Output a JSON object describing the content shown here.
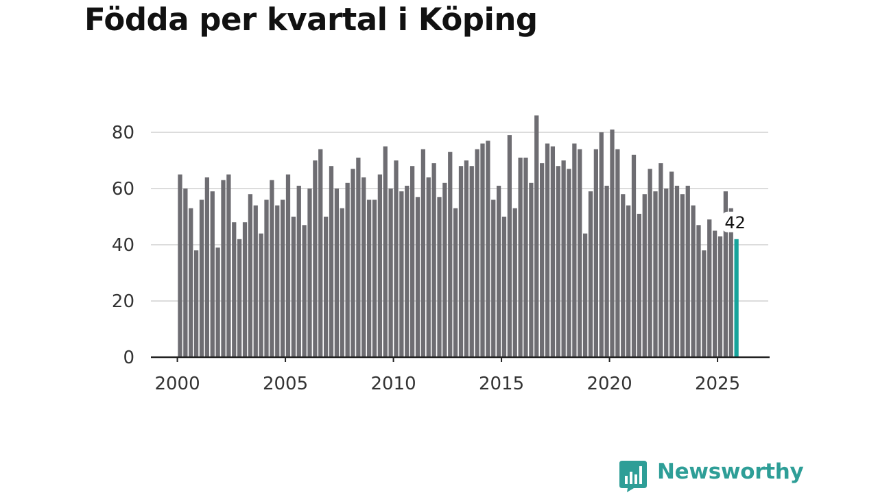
{
  "title": "Födda per kvartal i Köping",
  "colors": {
    "bar": "#6e6d72",
    "highlight": "#17a39b",
    "grid": "#dcdcdc",
    "axis": "#222222",
    "text": "#333333",
    "brand": "#2e9e97"
  },
  "chart_data": {
    "type": "bar",
    "title": "Födda per kvartal i Köping",
    "xlabel": "",
    "ylabel": "",
    "start_year": 2000,
    "periods_per_year": 4,
    "x_ticks": [
      2000,
      2005,
      2010,
      2015,
      2020,
      2025
    ],
    "x_tick_labels": [
      "2000",
      "2005",
      "2010",
      "2015",
      "2020",
      "2025"
    ],
    "y_ticks": [
      0,
      20,
      40,
      60,
      80
    ],
    "y_tick_labels": [
      "0",
      "20",
      "40",
      "60",
      "80"
    ],
    "ylim": [
      0,
      88
    ],
    "grid": true,
    "values": [
      65,
      60,
      53,
      38,
      56,
      64,
      59,
      39,
      63,
      65,
      48,
      42,
      48,
      58,
      54,
      44,
      56,
      63,
      54,
      56,
      65,
      50,
      61,
      47,
      60,
      70,
      74,
      50,
      68,
      60,
      53,
      62,
      67,
      71,
      64,
      56,
      56,
      65,
      75,
      60,
      70,
      59,
      61,
      68,
      57,
      74,
      64,
      69,
      57,
      62,
      73,
      53,
      68,
      70,
      68,
      74,
      76,
      77,
      56,
      61,
      50,
      79,
      53,
      71,
      71,
      62,
      86,
      69,
      76,
      75,
      68,
      70,
      67,
      76,
      74,
      44,
      59,
      74,
      80,
      61,
      81,
      74,
      58,
      54,
      72,
      51,
      58,
      67,
      59,
      69,
      60,
      66,
      61,
      58,
      61,
      54,
      47,
      38,
      49,
      45,
      43,
      59,
      53,
      42
    ],
    "highlight_index": 103,
    "highlight_label": "42"
  },
  "brand": {
    "name": "Newsworthy",
    "logo_icon": "bar-chart-speech-bubble-icon"
  }
}
